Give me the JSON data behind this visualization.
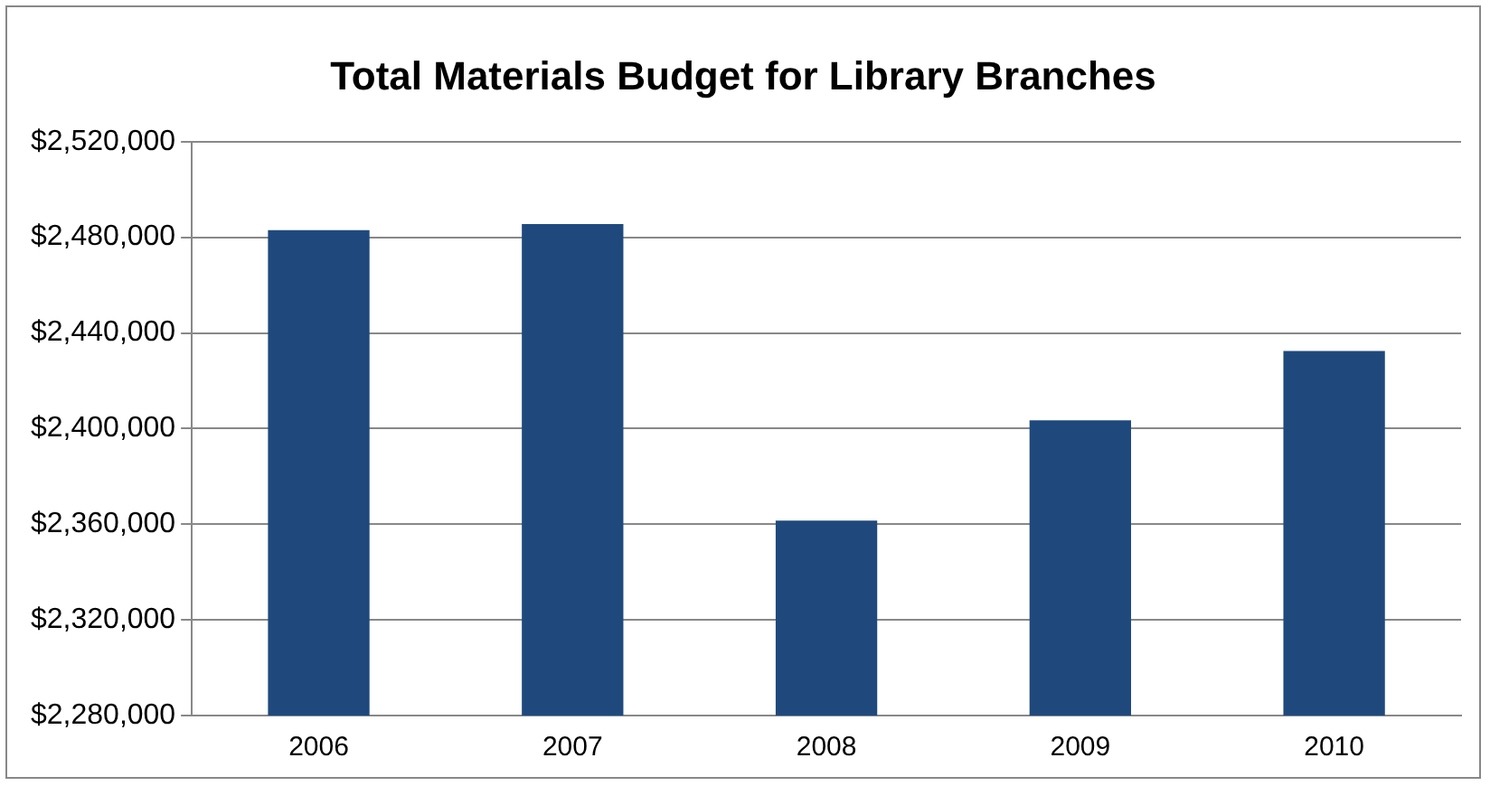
{
  "chart_data": {
    "type": "bar",
    "title": "Total Materials Budget for Library Branches",
    "categories": [
      "2006",
      "2007",
      "2008",
      "2009",
      "2010"
    ],
    "values": [
      2483000,
      2485500,
      2361500,
      2403500,
      2432500
    ],
    "color": "#1f497d",
    "ylim": [
      2280000,
      2520000
    ],
    "yticks": [
      {
        "value": 2280000,
        "label": "$2,280,000"
      },
      {
        "value": 2320000,
        "label": "$2,320,000"
      },
      {
        "value": 2360000,
        "label": "$2,360,000"
      },
      {
        "value": 2400000,
        "label": "$2,400,000"
      },
      {
        "value": 2440000,
        "label": "$2,440,000"
      },
      {
        "value": 2480000,
        "label": "$2,480,000"
      },
      {
        "value": 2520000,
        "label": "$2,520,000"
      }
    ],
    "grid": "y",
    "legend": false
  }
}
